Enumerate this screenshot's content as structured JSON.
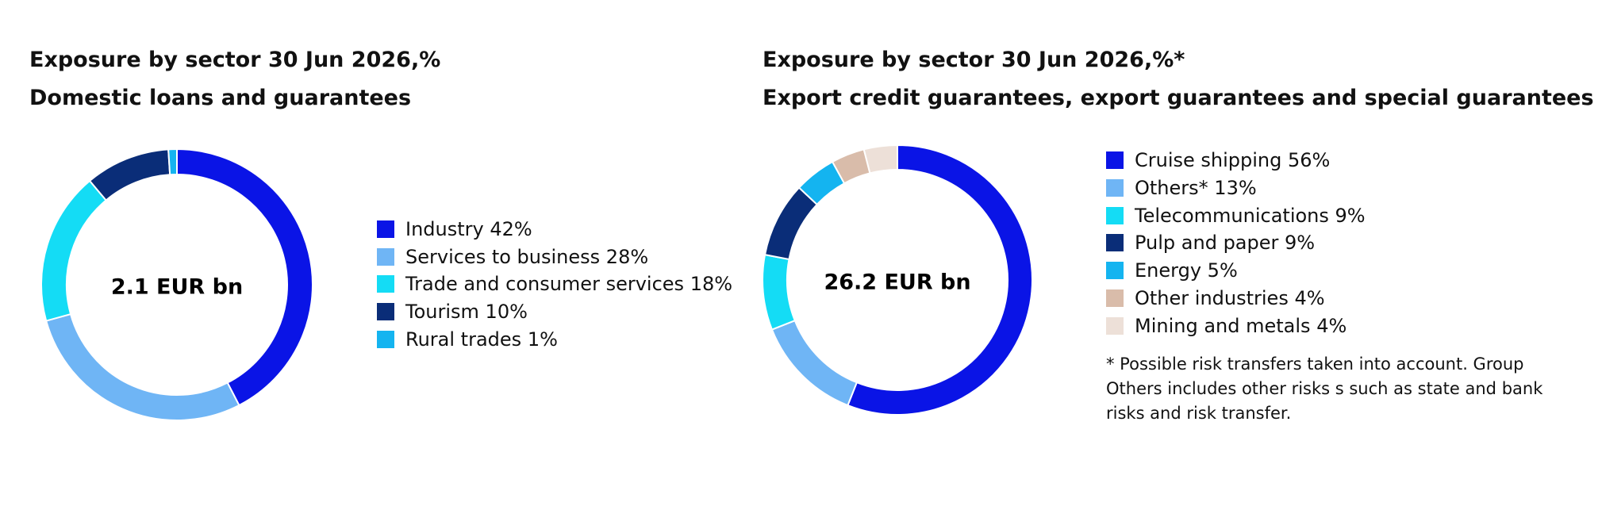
{
  "chart_data": [
    {
      "type": "donut",
      "title": "Exposure by sector 30 Jun 2026,%",
      "subtitle": "Domestic loans and guarantees",
      "center_label": "2.1  EUR bn",
      "categories": [
        "Industry",
        "Services to business",
        "Trade and consumer services",
        "Tourism",
        "Rural trades"
      ],
      "values": [
        42,
        28,
        18,
        10,
        1
      ],
      "value_labels": [
        "42%",
        "28%",
        "18%",
        "10%",
        "1%"
      ],
      "colors": [
        "#0a14e6",
        "#6fb5f5",
        "#14dcf5",
        "#0a2d78",
        "#14b4f0"
      ]
    },
    {
      "type": "donut",
      "title": "Exposure by sector 30 Jun 2026,%*",
      "subtitle": "Export credit guarantees, export guarantees and special guarantees",
      "center_label": "26.2  EUR bn",
      "categories": [
        "Cruise shipping",
        "Others*",
        "Telecommunications",
        "Pulp and paper",
        "Energy",
        "Other industries",
        "Mining and metals"
      ],
      "values": [
        56,
        13,
        9,
        9,
        5,
        4,
        4
      ],
      "value_labels": [
        "56%",
        "13%",
        "9%",
        "9%",
        "5%",
        "4%",
        "4%"
      ],
      "colors": [
        "#0a14e6",
        "#6fb5f5",
        "#14dcf5",
        "#0a2d78",
        "#14b4f0",
        "#d9bcaa",
        "#ede0d8"
      ],
      "note": "* Possible risk transfers taken into account. Group Others includes other risks s such as state and bank risks and risk transfer."
    }
  ]
}
